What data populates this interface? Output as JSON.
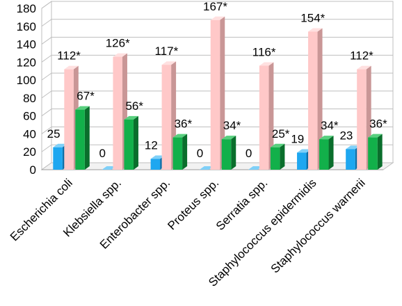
{
  "chart_data": {
    "type": "bar",
    "categories": [
      "Escherichia coli",
      "Klebsiella spp.",
      "Enterobacter spp.",
      "Proteus spp.",
      "Serratia spp.",
      "Staphylococcus epidermidis",
      "Staphylococcus warnerii"
    ],
    "series": [
      {
        "values": [
          25,
          0,
          12,
          0,
          0,
          19,
          23
        ],
        "labels": [
          "25",
          "0",
          "12",
          "0",
          "0",
          "19",
          "23"
        ],
        "color": "#1ea7f0",
        "side_color": "#0b6fa8",
        "top_color": "#7fd0f8"
      },
      {
        "values": [
          112,
          126,
          117,
          167,
          116,
          154,
          112
        ],
        "labels": [
          "112*",
          "126*",
          "117*",
          "167*",
          "116*",
          "154*",
          "112*"
        ],
        "color": "#ffc8c8",
        "side_color": "#c99696",
        "top_color": "#ffe0e0"
      },
      {
        "values": [
          67,
          56,
          36,
          34,
          25,
          34,
          36
        ],
        "labels": [
          "67*",
          "56*",
          "36*",
          "34*",
          "25*",
          "34*",
          "36*"
        ],
        "color": "#12b04a",
        "side_color": "#0a6e2c",
        "top_color": "#58cf7e"
      }
    ],
    "yticks": [
      0,
      20,
      40,
      60,
      80,
      100,
      120,
      140,
      160,
      180
    ],
    "ylim": [
      0,
      180
    ],
    "grid": true,
    "legend": "none",
    "title": "",
    "xlabel": "",
    "ylabel": ""
  }
}
